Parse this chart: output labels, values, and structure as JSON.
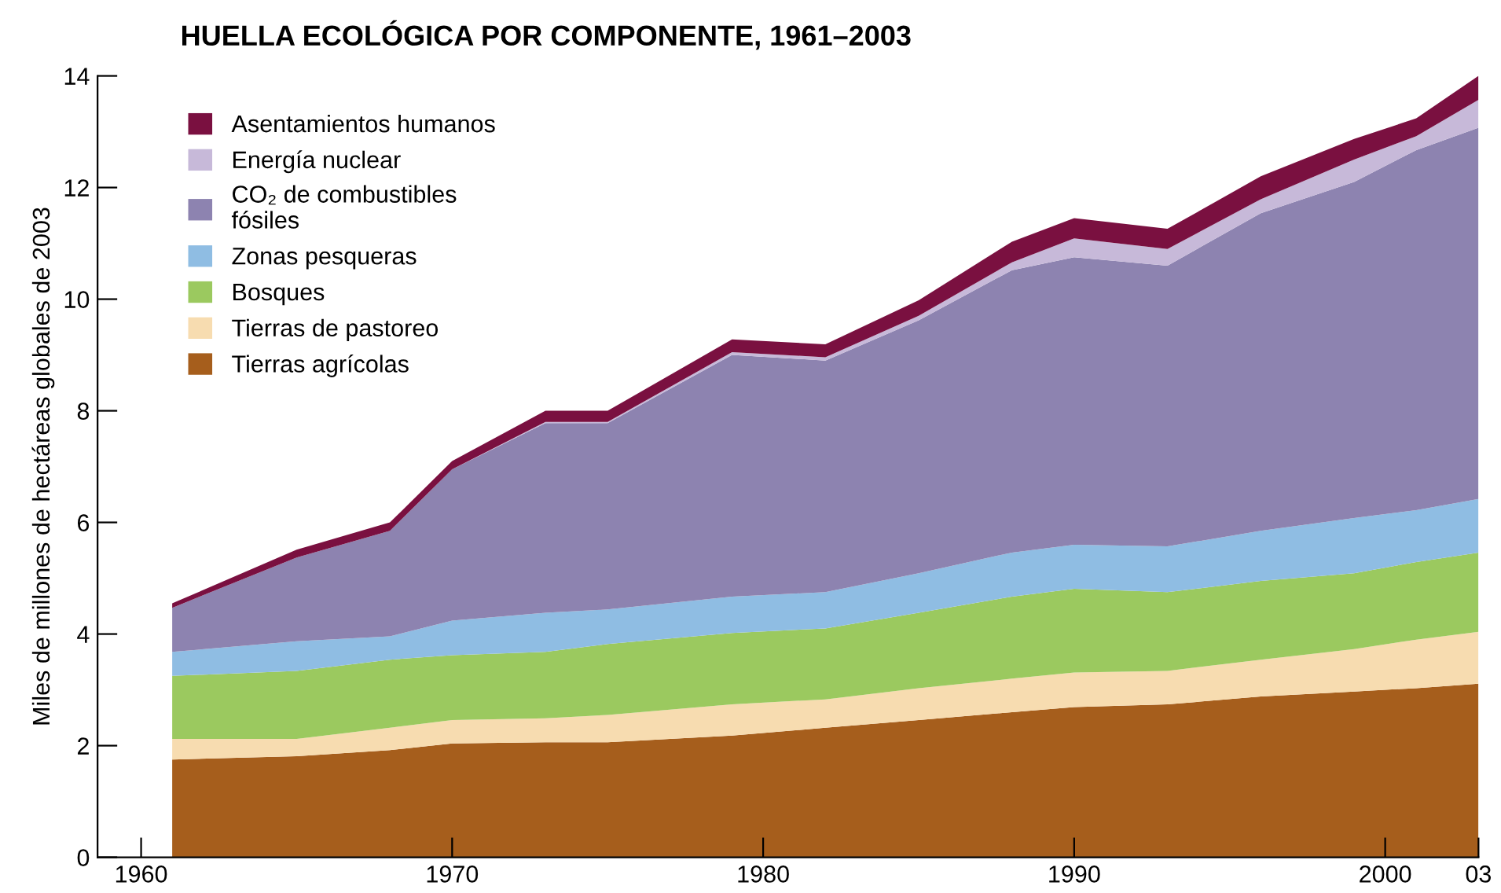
{
  "chart_data": {
    "type": "area",
    "stacked": true,
    "title": "HUELLA ECOLÓGICA POR COMPONENTE, 1961–2003",
    "ylabel": "Miles de millones de hectáreas globales de 2003",
    "x": [
      1961,
      1965,
      1968,
      1970,
      1973,
      1975,
      1979,
      1982,
      1985,
      1988,
      1990,
      1993,
      1996,
      1999,
      2001,
      2003
    ],
    "series": [
      {
        "name": "Tierras agrícolas",
        "color": "#a65e1c",
        "values": [
          1.75,
          1.81,
          1.92,
          2.04,
          2.06,
          2.06,
          2.18,
          2.32,
          2.46,
          2.6,
          2.69,
          2.74,
          2.88,
          2.97,
          3.03,
          3.11
        ]
      },
      {
        "name": "Tierras de pastoreo",
        "color": "#f7dcb0",
        "values": [
          0.37,
          0.31,
          0.4,
          0.42,
          0.43,
          0.49,
          0.56,
          0.51,
          0.57,
          0.6,
          0.62,
          0.6,
          0.66,
          0.76,
          0.87,
          0.93
        ]
      },
      {
        "name": "Bosques",
        "color": "#9bc95f",
        "values": [
          1.13,
          1.22,
          1.22,
          1.16,
          1.19,
          1.27,
          1.28,
          1.27,
          1.35,
          1.47,
          1.5,
          1.41,
          1.41,
          1.36,
          1.39,
          1.42
        ]
      },
      {
        "name": "Zonas pesqueras",
        "color": "#8fbde3",
        "values": [
          0.43,
          0.53,
          0.42,
          0.62,
          0.7,
          0.62,
          0.65,
          0.65,
          0.71,
          0.79,
          0.79,
          0.82,
          0.9,
          0.99,
          0.93,
          0.96
        ]
      },
      {
        "name": "CO₂ de combustibles\nfósiles",
        "color": "#8d83b0",
        "values": [
          0.79,
          1.5,
          1.89,
          2.71,
          3.4,
          3.34,
          4.33,
          4.15,
          4.53,
          5.06,
          5.15,
          5.03,
          5.69,
          6.02,
          6.45,
          6.65
        ]
      },
      {
        "name": "Energía nuclear",
        "color": "#c7b9d9",
        "values": [
          0,
          0,
          0,
          0,
          0.02,
          0.02,
          0.05,
          0.06,
          0.08,
          0.14,
          0.34,
          0.3,
          0.25,
          0.4,
          0.25,
          0.5
        ]
      },
      {
        "name": "Asentamientos humanos",
        "color": "#7a1040",
        "values": [
          0.08,
          0.14,
          0.15,
          0.15,
          0.2,
          0.2,
          0.23,
          0.23,
          0.28,
          0.37,
          0.36,
          0.36,
          0.41,
          0.37,
          0.32,
          0.43
        ]
      }
    ],
    "xlim": [
      1958.6,
      2003
    ],
    "xticks": [
      1960,
      1970,
      1980,
      1990,
      2000,
      {
        "value": 2003,
        "label": "03"
      }
    ],
    "ylim": [
      0,
      14
    ],
    "yticks": [
      0,
      2,
      4,
      6,
      8,
      10,
      12,
      14
    ],
    "grid": false,
    "legend": "top left"
  }
}
